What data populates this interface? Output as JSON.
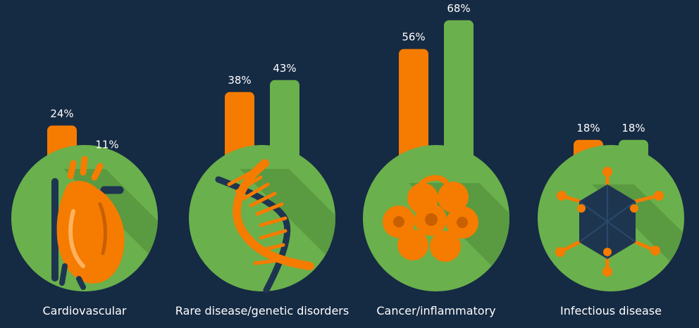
{
  "chart_data": {
    "type": "bar",
    "categories": [
      "Cardiovascular",
      "Rare disease/genetic disorders",
      "Cancer/inflammatory",
      "Infectious disease"
    ],
    "category_icons": [
      "heart-icon",
      "dna-icon",
      "cancer-cells-icon",
      "virus-icon"
    ],
    "series": [
      {
        "values": [
          24,
          38,
          56,
          18
        ],
        "labels": [
          "24%",
          "38%",
          "56%",
          "18%"
        ],
        "color": "#f57c00"
      },
      {
        "values": [
          11,
          43,
          68,
          18
        ],
        "labels": [
          "11%",
          "43%",
          "68%",
          "18%"
        ],
        "color": "#6ab04c"
      }
    ],
    "ylim": [
      0,
      100
    ],
    "grid": false,
    "legend": "none",
    "colors": {
      "background": "#152a43",
      "circle": "#6ab04c",
      "shadow": "#5a9a41",
      "icon_orange": "#f57c00",
      "icon_dark": "#1e3550"
    }
  }
}
